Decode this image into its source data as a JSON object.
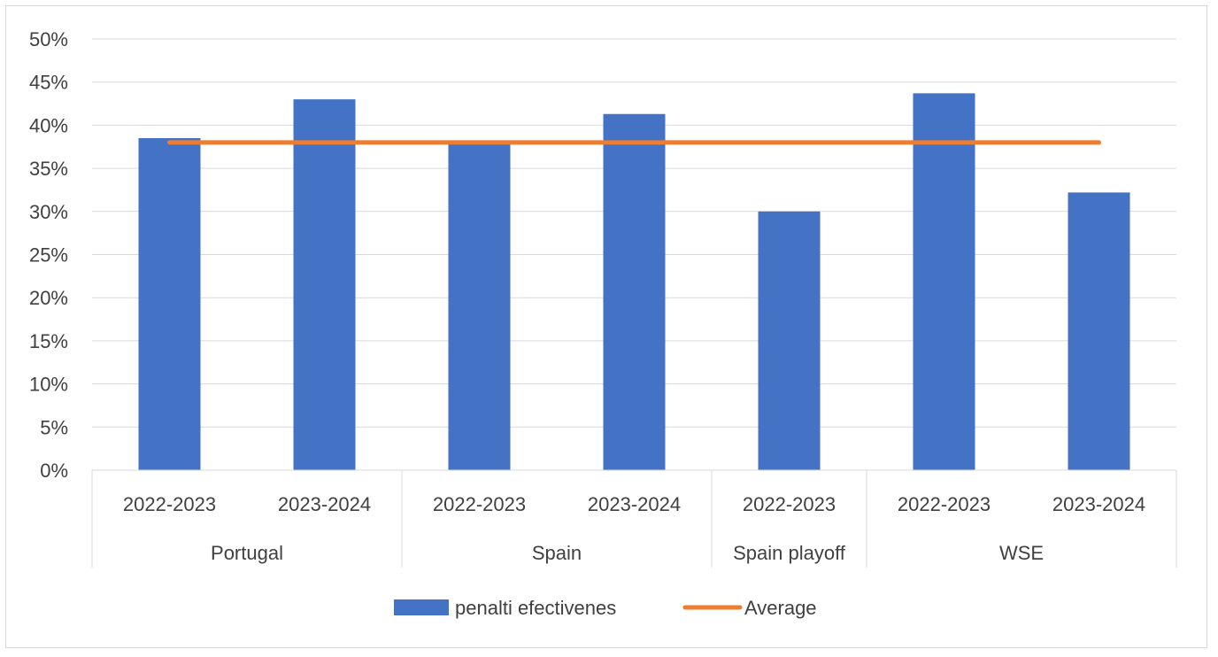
{
  "chart_data": {
    "type": "bar",
    "categories": [
      {
        "group": "Portugal",
        "label": "2022-2023"
      },
      {
        "group": "Portugal",
        "label": "2023-2024"
      },
      {
        "group": "Spain",
        "label": "2022-2023"
      },
      {
        "group": "Spain",
        "label": "2023-2024"
      },
      {
        "group": "Spain playoff",
        "label": "2022-2023"
      },
      {
        "group": "WSE",
        "label": "2022-2023"
      },
      {
        "group": "WSE",
        "label": "2023-2024"
      }
    ],
    "groups": [
      "Portugal",
      "Spain",
      "Spain playoff",
      "WSE"
    ],
    "series": [
      {
        "name": "penalti efectivenes",
        "type": "bar",
        "color": "#4472c4",
        "values": [
          0.385,
          0.43,
          0.38,
          0.413,
          0.3,
          0.437,
          0.322
        ]
      },
      {
        "name": "Average",
        "type": "line",
        "color": "#ed7d31",
        "values": [
          0.38,
          0.38,
          0.38,
          0.38,
          0.38,
          0.38,
          0.38
        ]
      }
    ],
    "y_ticks": [
      "0%",
      "5%",
      "10%",
      "15%",
      "20%",
      "25%",
      "30%",
      "35%",
      "40%",
      "45%",
      "50%"
    ],
    "ylim": [
      0,
      0.5
    ],
    "grid": true,
    "legend_position": "bottom"
  }
}
